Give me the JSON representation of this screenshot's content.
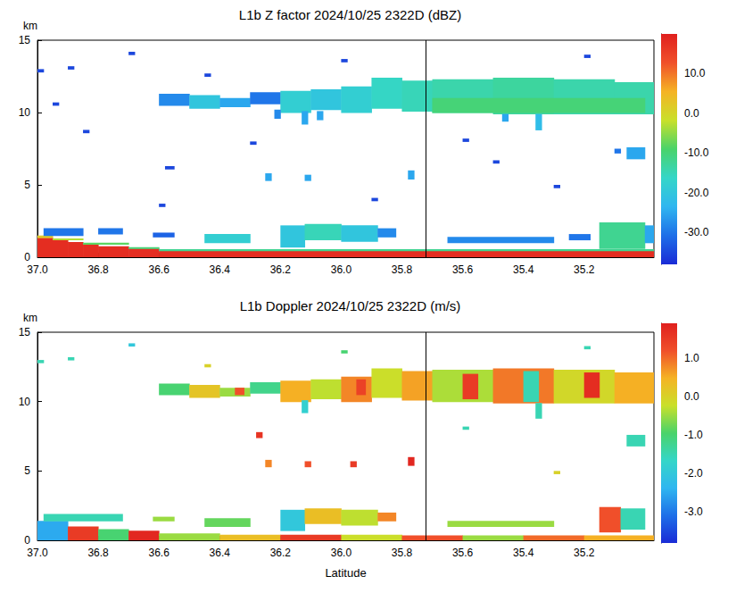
{
  "chart_data": [
    {
      "type": "heatmap",
      "title": "L1b Z factor 2024/10/25 2322D (dBZ)",
      "y_label": "km",
      "xlim": [
        37.0,
        34.97
      ],
      "xticks": [
        {
          "value": 37.0,
          "label": "37.0"
        },
        {
          "value": 36.8,
          "label": "36.8"
        },
        {
          "value": 36.6,
          "label": "36.6"
        },
        {
          "value": 36.4,
          "label": "36.4"
        },
        {
          "value": 36.2,
          "label": "36.2"
        },
        {
          "value": 36.0,
          "label": "36.0"
        },
        {
          "value": 35.8,
          "label": "35.8"
        },
        {
          "value": 35.6,
          "label": "35.6"
        },
        {
          "value": 35.4,
          "label": "35.4"
        },
        {
          "value": 35.2,
          "label": "35.2"
        }
      ],
      "ylim": [
        0,
        15
      ],
      "yticks": [
        0,
        5,
        10,
        15
      ],
      "grid": false,
      "vertical_line": 35.72,
      "colorbar": {
        "range": [
          -38,
          20
        ],
        "ticks": [
          {
            "value": -30,
            "label": "-30.0"
          },
          {
            "value": -20,
            "label": "-20.0"
          },
          {
            "value": -10,
            "label": "-10.0"
          },
          {
            "value": 0,
            "label": "0.0"
          },
          {
            "value": 10,
            "label": "10.0"
          }
        ]
      },
      "cells": [
        [
          37.0,
          36.95,
          0,
          1.35,
          18
        ],
        [
          36.95,
          36.9,
          0,
          1.2,
          18
        ],
        [
          36.9,
          36.85,
          0,
          1.05,
          18
        ],
        [
          36.85,
          36.8,
          0,
          0.9,
          18
        ],
        [
          36.8,
          36.7,
          0,
          0.75,
          18
        ],
        [
          36.7,
          36.6,
          0,
          0.6,
          18
        ],
        [
          36.6,
          34.97,
          0,
          0.45,
          18
        ],
        [
          37.0,
          36.95,
          1.35,
          1.5,
          2
        ],
        [
          36.95,
          36.85,
          1.2,
          1.3,
          -3
        ],
        [
          36.85,
          36.7,
          0.9,
          1.0,
          -8
        ],
        [
          36.7,
          36.6,
          0.6,
          0.7,
          -10
        ],
        [
          36.6,
          34.97,
          0.45,
          0.55,
          -12
        ],
        [
          36.98,
          36.85,
          1.5,
          2.0,
          -30
        ],
        [
          36.8,
          36.72,
          1.6,
          2.0,
          -30
        ],
        [
          36.62,
          36.55,
          1.4,
          1.7,
          -32
        ],
        [
          36.45,
          36.3,
          1.0,
          1.6,
          -18
        ],
        [
          36.2,
          36.12,
          0.7,
          2.2,
          -20
        ],
        [
          36.12,
          36.0,
          1.2,
          2.3,
          -15
        ],
        [
          36.0,
          35.88,
          1.1,
          2.2,
          -20
        ],
        [
          35.88,
          35.82,
          1.4,
          2.0,
          -28
        ],
        [
          35.65,
          35.3,
          1.0,
          1.4,
          -28
        ],
        [
          35.25,
          35.18,
          1.2,
          1.6,
          -30
        ],
        [
          35.15,
          35.0,
          0.6,
          2.4,
          -12
        ],
        [
          35.0,
          34.97,
          1.0,
          2.2,
          -25
        ],
        [
          36.6,
          36.5,
          10.5,
          11.3,
          -28
        ],
        [
          36.5,
          36.4,
          10.3,
          11.2,
          -20
        ],
        [
          36.4,
          36.3,
          10.4,
          11.0,
          -25
        ],
        [
          36.3,
          36.2,
          10.6,
          11.4,
          -30
        ],
        [
          36.2,
          36.1,
          10.0,
          11.5,
          -18
        ],
        [
          36.1,
          36.0,
          10.2,
          11.6,
          -20
        ],
        [
          36.0,
          35.9,
          10.0,
          11.8,
          -18
        ],
        [
          35.9,
          35.8,
          10.3,
          12.4,
          -16
        ],
        [
          35.8,
          35.7,
          10.1,
          12.2,
          -15
        ],
        [
          35.7,
          35.5,
          10.0,
          12.3,
          -14
        ],
        [
          35.5,
          35.3,
          9.9,
          12.4,
          -13
        ],
        [
          35.3,
          35.1,
          9.9,
          12.3,
          -14
        ],
        [
          35.1,
          34.97,
          9.9,
          12.1,
          -14
        ],
        [
          35.7,
          35.0,
          10.0,
          11.0,
          -10
        ],
        [
          36.13,
          36.11,
          9.2,
          10.1,
          -25
        ],
        [
          36.08,
          36.06,
          9.5,
          10.1,
          -25
        ],
        [
          35.36,
          35.34,
          8.8,
          9.9,
          -22
        ],
        [
          35.47,
          35.45,
          9.4,
          9.9,
          -25
        ],
        [
          36.22,
          36.2,
          9.6,
          10.2,
          -28
        ],
        [
          36.25,
          36.23,
          5.3,
          5.8,
          -25
        ],
        [
          36.12,
          36.1,
          5.3,
          5.7,
          -25
        ],
        [
          35.78,
          35.76,
          5.4,
          6.0,
          -25
        ],
        [
          35.06,
          35.0,
          6.8,
          7.6,
          -25
        ],
        [
          35.1,
          35.08,
          7.2,
          7.5,
          -30
        ],
        [
          36.58,
          36.55,
          6.1,
          6.3,
          -35
        ],
        [
          36.9,
          36.88,
          13.0,
          13.2,
          -35
        ],
        [
          36.85,
          36.83,
          8.6,
          8.8,
          -35
        ],
        [
          36.7,
          36.68,
          14.0,
          14.2,
          -35
        ],
        [
          36.45,
          36.43,
          12.5,
          12.7,
          -35
        ],
        [
          36.3,
          36.28,
          7.8,
          8.0,
          -35
        ],
        [
          36.0,
          35.98,
          13.5,
          13.7,
          -35
        ],
        [
          35.9,
          35.88,
          3.9,
          4.1,
          -35
        ],
        [
          35.6,
          35.58,
          8.0,
          8.2,
          -35
        ],
        [
          35.5,
          35.48,
          6.5,
          6.7,
          -35
        ],
        [
          35.3,
          35.28,
          4.8,
          5.0,
          -35
        ],
        [
          35.2,
          35.18,
          13.8,
          14.0,
          -35
        ],
        [
          36.95,
          36.93,
          10.5,
          10.7,
          -35
        ],
        [
          36.6,
          36.58,
          3.5,
          3.7,
          -35
        ],
        [
          37.0,
          36.98,
          12.8,
          13.0,
          -35
        ]
      ]
    },
    {
      "type": "heatmap",
      "title": "L1b Doppler 2024/10/25 2322D (m/s)",
      "x_label": "Latitude",
      "y_label": "km",
      "xlim": [
        37.0,
        34.97
      ],
      "xticks": [
        {
          "value": 37.0,
          "label": "37.0"
        },
        {
          "value": 36.8,
          "label": "36.8"
        },
        {
          "value": 36.6,
          "label": "36.6"
        },
        {
          "value": 36.4,
          "label": "36.4"
        },
        {
          "value": 36.2,
          "label": "36.2"
        },
        {
          "value": 36.0,
          "label": "36.0"
        },
        {
          "value": 35.8,
          "label": "35.8"
        },
        {
          "value": 35.6,
          "label": "35.6"
        },
        {
          "value": 35.4,
          "label": "35.4"
        },
        {
          "value": 35.2,
          "label": "35.2"
        }
      ],
      "ylim": [
        0,
        15
      ],
      "yticks": [
        0,
        5,
        10,
        15
      ],
      "grid": false,
      "vertical_line": 35.72,
      "colorbar": {
        "range": [
          -3.8,
          1.9
        ],
        "ticks": [
          {
            "value": -3,
            "label": "-3.0"
          },
          {
            "value": -2,
            "label": "-2.0"
          },
          {
            "value": -1,
            "label": "-1.0"
          },
          {
            "value": 0,
            "label": "0.0"
          },
          {
            "value": 1,
            "label": "1.0"
          }
        ]
      },
      "cells": [
        [
          37.0,
          36.9,
          0,
          1.4,
          -2.5
        ],
        [
          36.9,
          36.8,
          0,
          1.0,
          1.5
        ],
        [
          36.8,
          36.7,
          0,
          0.8,
          -1.0
        ],
        [
          36.7,
          36.6,
          0,
          0.7,
          1.8
        ],
        [
          36.6,
          36.4,
          0,
          0.5,
          -0.5
        ],
        [
          36.4,
          36.2,
          0,
          0.4,
          0.3
        ],
        [
          36.2,
          36.0,
          0,
          0.4,
          1.5
        ],
        [
          36.0,
          35.8,
          0,
          0.4,
          -0.2
        ],
        [
          35.8,
          35.6,
          0,
          0.35,
          1.2
        ],
        [
          35.6,
          35.4,
          0,
          0.35,
          -0.5
        ],
        [
          35.4,
          35.2,
          0,
          0.35,
          1.0
        ],
        [
          35.2,
          34.97,
          0,
          0.35,
          0.5
        ],
        [
          36.98,
          36.72,
          1.4,
          1.9,
          -1.5
        ],
        [
          36.62,
          36.55,
          1.4,
          1.7,
          -0.5
        ],
        [
          36.45,
          36.3,
          1.0,
          1.6,
          -0.8
        ],
        [
          36.2,
          36.12,
          0.7,
          2.2,
          -2.0
        ],
        [
          36.12,
          36.0,
          1.2,
          2.3,
          0.3
        ],
        [
          36.0,
          35.88,
          1.1,
          2.2,
          -0.3
        ],
        [
          35.88,
          35.82,
          1.4,
          2.0,
          0.8
        ],
        [
          35.65,
          35.3,
          1.0,
          1.4,
          -0.5
        ],
        [
          35.15,
          35.08,
          0.6,
          2.4,
          1.2
        ],
        [
          35.08,
          35.0,
          0.8,
          2.3,
          -1.5
        ],
        [
          36.6,
          36.5,
          10.5,
          11.3,
          -1.0
        ],
        [
          36.5,
          36.4,
          10.3,
          11.2,
          0.2
        ],
        [
          36.4,
          36.3,
          10.4,
          11.0,
          -0.5
        ],
        [
          36.3,
          36.2,
          10.6,
          11.4,
          -1.2
        ],
        [
          36.2,
          36.1,
          10.0,
          11.5,
          0.5
        ],
        [
          36.1,
          36.0,
          10.2,
          11.6,
          -0.3
        ],
        [
          36.0,
          35.9,
          10.0,
          11.8,
          0.8
        ],
        [
          35.9,
          35.8,
          10.3,
          12.4,
          -0.2
        ],
        [
          35.8,
          35.7,
          10.1,
          12.2,
          0.6
        ],
        [
          35.7,
          35.5,
          10.0,
          12.3,
          -0.4
        ],
        [
          35.5,
          35.3,
          9.9,
          12.4,
          0.9
        ],
        [
          35.3,
          35.1,
          9.9,
          12.3,
          -0.1
        ],
        [
          35.1,
          34.97,
          9.9,
          12.1,
          0.5
        ],
        [
          35.6,
          35.55,
          10.2,
          12.0,
          1.5
        ],
        [
          35.4,
          35.35,
          10.0,
          12.2,
          -1.5
        ],
        [
          35.2,
          35.15,
          10.3,
          12.1,
          1.7
        ],
        [
          35.95,
          35.92,
          10.5,
          11.6,
          1.4
        ],
        [
          36.35,
          36.32,
          10.5,
          11.0,
          1.2
        ],
        [
          35.36,
          35.34,
          8.8,
          9.9,
          -1.5
        ],
        [
          36.13,
          36.11,
          9.2,
          10.1,
          -1.8
        ],
        [
          36.25,
          36.23,
          5.3,
          5.8,
          0.8
        ],
        [
          36.12,
          36.1,
          5.3,
          5.7,
          1.2
        ],
        [
          35.97,
          35.95,
          5.3,
          5.7,
          1.5
        ],
        [
          35.78,
          35.76,
          5.4,
          6.0,
          1.8
        ],
        [
          36.28,
          36.26,
          7.4,
          7.8,
          1.6
        ],
        [
          35.06,
          35.0,
          6.8,
          7.6,
          -1.5
        ],
        [
          36.9,
          36.88,
          13.0,
          13.2,
          -1.5
        ],
        [
          36.7,
          36.68,
          14.0,
          14.2,
          -2.0
        ],
        [
          36.45,
          36.43,
          12.5,
          12.7,
          0.0
        ],
        [
          36.0,
          35.98,
          13.5,
          13.7,
          -1.0
        ],
        [
          35.6,
          35.58,
          8.0,
          8.2,
          -1.5
        ],
        [
          35.3,
          35.28,
          4.8,
          5.0,
          0.0
        ],
        [
          35.2,
          35.18,
          13.8,
          14.0,
          -1.5
        ],
        [
          37.0,
          36.98,
          12.8,
          13.0,
          -1.5
        ]
      ]
    }
  ]
}
